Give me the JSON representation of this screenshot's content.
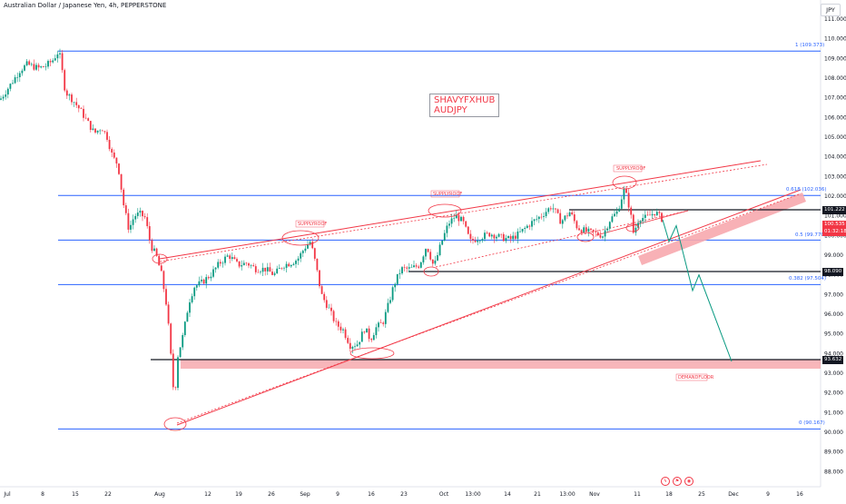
{
  "header": {
    "title": "Australian Dollar / Japanese Yen, 4h, PEPPERSTONE",
    "currency": "JPY"
  },
  "annotation": {
    "line1": "SHAVYFXHUB",
    "line2": "AUDJPY"
  },
  "badges": {
    "level_101": "101.222",
    "price_current": "100.535",
    "countdown": "01:32:18",
    "level_98": "98.090",
    "level_93": "93.632"
  },
  "fib_labels": {
    "f1": "1 (109.373)",
    "f618": "0.618 (102.036)",
    "f05": "0.5 (99.770)",
    "f382": "0.382 (97.504)",
    "f0": "0 (90.167)"
  },
  "zone_labels": {
    "supply1": "SUPPLYROOF",
    "supply2": "SUPPLYROOF",
    "supply3": "SUPPLYROOF",
    "demand": "DEMANDFLOOR"
  },
  "colors": {
    "fib": "#2962ff",
    "trend": "#f23645",
    "zone_fill": "#f7a9ae",
    "projection": "#089981",
    "up": "#089981",
    "down": "#f23645"
  },
  "chart_data": {
    "type": "candlestick",
    "symbol": "AUDJPY",
    "timeframe": "4h",
    "ylim": [
      87.6,
      111.6
    ],
    "y_ticks": [
      "111.000",
      "110.000",
      "109.000",
      "108.000",
      "107.000",
      "106.000",
      "105.000",
      "104.000",
      "103.000",
      "102.000",
      "101.000",
      "100.000",
      "99.000",
      "98.000",
      "97.000",
      "96.000",
      "95.000",
      "94.000",
      "93.000",
      "92.000",
      "91.000",
      "90.000",
      "89.000",
      "88.000"
    ],
    "x_ticks": [
      "Jul",
      "8",
      "15",
      "22",
      "Aug",
      "12",
      "19",
      "26",
      "Sep",
      "9",
      "16",
      "23",
      "Oct",
      "13:00",
      "14",
      "21",
      "13:00",
      "Nov",
      "11",
      "18",
      "25",
      "Dec",
      "9",
      "16"
    ],
    "fib_levels": [
      109.373,
      102.036,
      99.77,
      97.504,
      90.167
    ],
    "horizontal_levels": [
      101.222,
      98.09,
      93.632
    ],
    "current_price": 100.535,
    "price_path": [
      [
        0,
        106.9
      ],
      [
        12,
        107.7
      ],
      [
        22,
        108.4
      ],
      [
        30,
        108.7
      ],
      [
        42,
        108.5
      ],
      [
        50,
        108.6
      ],
      [
        58,
        108.9
      ],
      [
        65,
        109.4
      ],
      [
        72,
        107.3
      ],
      [
        80,
        106.9
      ],
      [
        88,
        106.4
      ],
      [
        96,
        105.8
      ],
      [
        104,
        105.2
      ],
      [
        112,
        105.5
      ],
      [
        118,
        105.0
      ],
      [
        124,
        104.0
      ],
      [
        130,
        103.6
      ],
      [
        136,
        101.6
      ],
      [
        142,
        100.3
      ],
      [
        148,
        101.0
      ],
      [
        154,
        101.1
      ],
      [
        160,
        100.9
      ],
      [
        166,
        99.5
      ],
      [
        172,
        99.0
      ],
      [
        178,
        98.0
      ],
      [
        184,
        96.3
      ],
      [
        188,
        94.0
      ],
      [
        192,
        91.6
      ],
      [
        196,
        93.9
      ],
      [
        202,
        95.0
      ],
      [
        208,
        96.6
      ],
      [
        214,
        97.4
      ],
      [
        222,
        97.6
      ],
      [
        232,
        98.0
      ],
      [
        242,
        98.6
      ],
      [
        252,
        99.0
      ],
      [
        262,
        98.5
      ],
      [
        272,
        98.6
      ],
      [
        282,
        98.3
      ],
      [
        292,
        98.3
      ],
      [
        302,
        98.0
      ],
      [
        312,
        98.5
      ],
      [
        320,
        98.6
      ],
      [
        328,
        98.8
      ],
      [
        336,
        99.4
      ],
      [
        342,
        99.7
      ],
      [
        348,
        98.5
      ],
      [
        354,
        97.0
      ],
      [
        362,
        96.3
      ],
      [
        370,
        95.5
      ],
      [
        378,
        95.2
      ],
      [
        386,
        94.4
      ],
      [
        394,
        94.5
      ],
      [
        402,
        95.3
      ],
      [
        408,
        94.7
      ],
      [
        414,
        95.3
      ],
      [
        422,
        95.6
      ],
      [
        428,
        96.5
      ],
      [
        434,
        97.5
      ],
      [
        442,
        98.3
      ],
      [
        452,
        98.3
      ],
      [
        462,
        98.5
      ],
      [
        470,
        99.5
      ],
      [
        478,
        98.4
      ],
      [
        486,
        99.6
      ],
      [
        494,
        100.6
      ],
      [
        502,
        101.0
      ],
      [
        510,
        100.7
      ],
      [
        518,
        99.7
      ],
      [
        528,
        99.9
      ],
      [
        540,
        100.1
      ],
      [
        552,
        99.9
      ],
      [
        562,
        99.8
      ],
      [
        572,
        100.1
      ],
      [
        584,
        100.6
      ],
      [
        596,
        101.0
      ],
      [
        608,
        101.5
      ],
      [
        618,
        100.7
      ],
      [
        628,
        101.2
      ],
      [
        636,
        100.4
      ],
      [
        646,
        100.2
      ],
      [
        656,
        100.1
      ],
      [
        664,
        100.0
      ],
      [
        672,
        100.8
      ],
      [
        680,
        101.2
      ],
      [
        688,
        102.4
      ],
      [
        694,
        101.3
      ],
      [
        698,
        100.1
      ],
      [
        704,
        100.9
      ],
      [
        712,
        100.9
      ],
      [
        722,
        101.2
      ],
      [
        730,
        100.8
      ]
    ],
    "projection_path": [
      [
        730,
        100.8
      ],
      [
        737,
        99.7
      ],
      [
        745,
        100.5
      ],
      [
        763,
        97.2
      ],
      [
        770,
        98.0
      ],
      [
        806,
        93.6
      ]
    ]
  }
}
